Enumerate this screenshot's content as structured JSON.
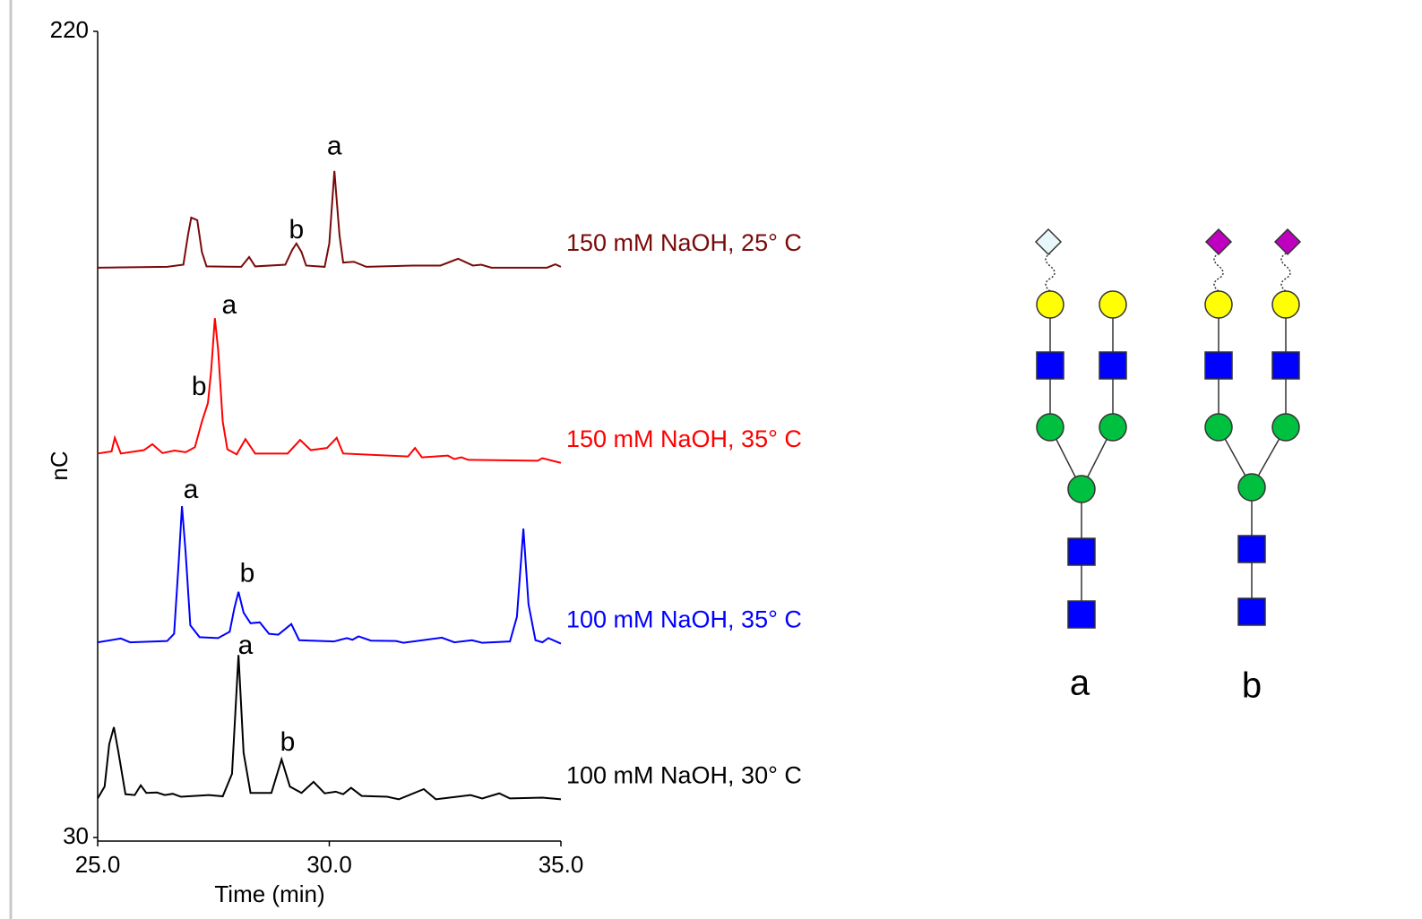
{
  "chart_data": {
    "type": "line",
    "x_label": "Time (min)",
    "y_label": "nC",
    "xlim": [
      25,
      35
    ],
    "ylim": [
      30,
      220
    ],
    "xticks": [
      {
        "value": 25,
        "label": "25.0"
      },
      {
        "value": 30,
        "label": "30.0"
      },
      {
        "value": 35,
        "label": "35.0"
      }
    ],
    "yticks": [
      30,
      220
    ],
    "grid": false,
    "series": [
      {
        "name": "150 mM NaOH, 25° C",
        "color": "#7a0a0a",
        "x": [
          25.0,
          26.5,
          26.85,
          26.95,
          27.02,
          27.15,
          27.25,
          27.35,
          28.1,
          28.27,
          28.4,
          29.05,
          29.2,
          29.29,
          29.4,
          29.5,
          29.9,
          30.0,
          30.11,
          30.22,
          30.3,
          30.53,
          30.8,
          31.8,
          32.4,
          32.78,
          33.1,
          33.28,
          33.5,
          34.7,
          34.88,
          35.0
        ],
        "values": [
          164.3,
          164.5,
          165,
          172,
          176.1,
          175.5,
          168,
          164.6,
          164.5,
          166.8,
          164.6,
          165,
          168.5,
          170.0,
          168,
          164.8,
          164.5,
          170,
          187.1,
          172,
          165.5,
          165.7,
          164.5,
          164.8,
          164.8,
          166.4,
          164.8,
          165.0,
          164.3,
          164.3,
          165.1,
          164.5
        ]
      },
      {
        "name": "150 mM NaOH, 35° C",
        "color": "#ff0000",
        "x": [
          25.0,
          25.3,
          25.37,
          25.5,
          26.0,
          26.18,
          26.4,
          26.66,
          26.9,
          27.1,
          27.25,
          27.38,
          27.45,
          27.53,
          27.6,
          27.7,
          27.8,
          28.0,
          28.19,
          28.4,
          29.1,
          29.37,
          29.6,
          29.95,
          30.16,
          30.3,
          31.7,
          31.85,
          32.0,
          32.56,
          32.7,
          32.85,
          33.0,
          34.5,
          34.6,
          35.0
        ],
        "values": [
          120.5,
          121,
          124.2,
          120.5,
          121.3,
          122.7,
          120.6,
          121.2,
          120.8,
          122,
          128,
          132.4,
          140,
          152.4,
          145,
          128,
          121.5,
          120.3,
          123.9,
          120.5,
          120.5,
          123.7,
          121.3,
          121.8,
          124.2,
          120.5,
          119.8,
          121.8,
          119.6,
          120.0,
          119.2,
          119.6,
          119.0,
          118.8,
          119.4,
          118.3
        ]
      },
      {
        "name": "100 mM NaOH, 35° C",
        "color": "#0000ff",
        "x": [
          25.0,
          25.5,
          25.7,
          26.5,
          26.65,
          26.75,
          26.82,
          26.9,
          27.0,
          27.2,
          27.6,
          27.85,
          27.95,
          28.04,
          28.15,
          28.3,
          28.5,
          28.7,
          28.9,
          29.18,
          29.35,
          30.1,
          30.38,
          30.5,
          30.63,
          30.9,
          31.44,
          31.6,
          32.43,
          32.7,
          33.08,
          33.3,
          33.9,
          34.05,
          34.19,
          34.3,
          34.45,
          34.6,
          34.73,
          35.0
        ],
        "values": [
          76.0,
          76.9,
          76.0,
          76.3,
          78,
          95,
          108.1,
          97,
          80,
          77.2,
          77.0,
          78.5,
          84,
          87.9,
          83,
          80.5,
          80.7,
          78,
          77.8,
          80.3,
          76.5,
          76.2,
          77.0,
          76.6,
          77.4,
          76.4,
          76.3,
          75.9,
          77.1,
          76.0,
          76.5,
          75.9,
          76.2,
          82,
          102.8,
          85,
          76.5,
          76.0,
          77.0,
          75.7
        ]
      },
      {
        "name": "100 mM NaOH, 30° C",
        "color": "#000000",
        "x": [
          25.0,
          25.15,
          25.25,
          25.35,
          25.45,
          25.6,
          25.8,
          25.93,
          26.05,
          26.28,
          26.45,
          26.62,
          26.8,
          27.4,
          27.7,
          27.9,
          28.04,
          28.15,
          28.3,
          28.75,
          28.97,
          29.15,
          29.4,
          29.66,
          29.9,
          30.14,
          30.3,
          30.47,
          30.7,
          31.25,
          31.5,
          32.04,
          32.3,
          33.05,
          33.3,
          33.67,
          33.9,
          34.6,
          35.0
        ],
        "values": [
          39.2,
          42,
          52,
          56.0,
          50,
          40.2,
          40.0,
          42.3,
          40.5,
          40.6,
          40.0,
          40.3,
          39.6,
          40.0,
          39.7,
          45,
          73.0,
          50,
          40.5,
          40.5,
          48.4,
          42,
          40.5,
          43.1,
          40.4,
          40.8,
          40.2,
          41.7,
          39.8,
          39.6,
          39.0,
          41.4,
          39.0,
          40.0,
          39.2,
          40.4,
          39.2,
          39.4,
          39.0
        ]
      }
    ],
    "annotations": [
      {
        "text": "a",
        "x": 30.11,
        "y": 192.6
      },
      {
        "text": "b",
        "x": 29.29,
        "y": 172.9
      },
      {
        "text": "a",
        "x": 27.84,
        "y": 155.2
      },
      {
        "text": "b",
        "x": 27.19,
        "y": 136.0
      },
      {
        "text": "a",
        "x": 27.01,
        "y": 111.7
      },
      {
        "text": "b",
        "x": 28.23,
        "y": 91.9
      },
      {
        "text": "a",
        "x": 28.19,
        "y": 75.0
      },
      {
        "text": "b",
        "x": 29.1,
        "y": 52.2
      }
    ]
  },
  "glycans": [
    {
      "label": "a"
    },
    {
      "label": "b"
    }
  ]
}
